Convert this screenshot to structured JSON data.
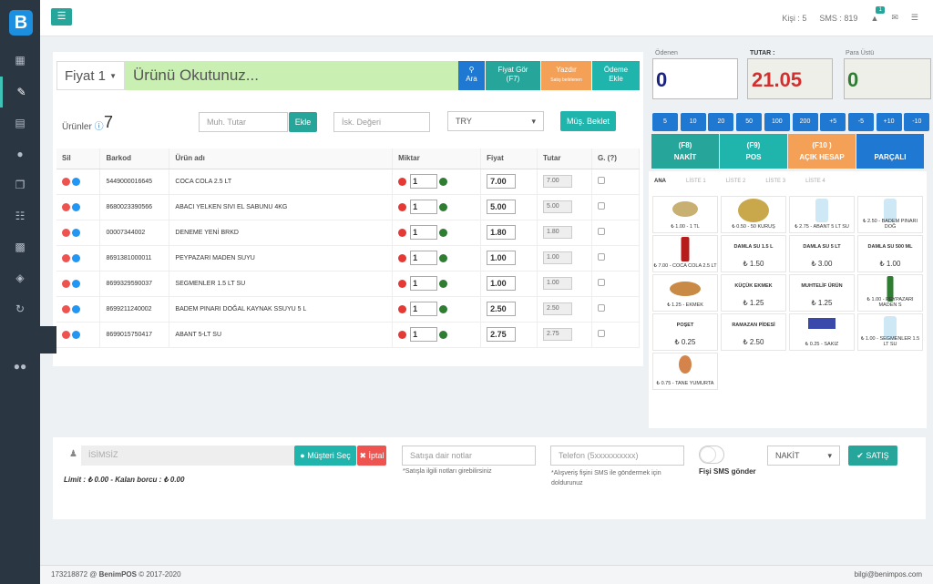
{
  "app": {
    "logo": "B",
    "footer_left_id": "173218872",
    "footer_brand": "BenimPOS",
    "footer_copy": "© 2017-2020",
    "footer_email": "bilgi@benimpos.com"
  },
  "topbar": {
    "people": "Kişi : 5",
    "sms": "SMS : 819",
    "notif_count": "1"
  },
  "scan": {
    "price_level": "Fiyat 1",
    "placeholder": "Ürünü Okutunuz...",
    "ara": "Ara",
    "fiyat_gor": "Fiyat Gör",
    "f7": "(F7)",
    "yazdir": "Yazdır",
    "yazdir_sub": "Satış belirlenen",
    "odeme": "Ödeme",
    "ekle": "Ekle"
  },
  "products": {
    "label": "Ürünler",
    "count": "7",
    "muh_tutar": "Muh. Tutar",
    "ekle": "Ekle",
    "isk": "İsk. Değeri",
    "currency": "TRY",
    "beklet": "Müş. Beklet"
  },
  "table": {
    "headers": [
      "Sil",
      "Barkod",
      "Ürün adı",
      "Miktar",
      "Fiyat",
      "Tutar",
      "G. (?)"
    ],
    "rows": [
      {
        "barkod": "5449000016645",
        "ad": "COCA COLA 2.5 LT",
        "miktar": "1",
        "fiyat": "7.00",
        "tutar": "7.00"
      },
      {
        "barkod": "8680023390566",
        "ad": "ABACI YELKEN SIVI EL SABUNU 4KG",
        "miktar": "1",
        "fiyat": "5.00",
        "tutar": "5.00"
      },
      {
        "barkod": "00007344002",
        "ad": "DENEME YENİ BRKD",
        "miktar": "1",
        "fiyat": "1.80",
        "tutar": "1.80"
      },
      {
        "barkod": "8691381000011",
        "ad": "PEYPAZARI MADEN SUYU",
        "miktar": "1",
        "fiyat": "1.00",
        "tutar": "1.00"
      },
      {
        "barkod": "8699329590037",
        "ad": "SEGMENLER 1.5 LT SU",
        "miktar": "1",
        "fiyat": "1.00",
        "tutar": "1.00"
      },
      {
        "barkod": "8699211240002",
        "ad": "BADEM PINARI DOĞAL KAYNAK SSUYU 5 L",
        "miktar": "1",
        "fiyat": "2.50",
        "tutar": "2.50"
      },
      {
        "barkod": "8699015750417",
        "ad": "ABANT 5-LT SU",
        "miktar": "1",
        "fiyat": "2.75",
        "tutar": "2.75"
      }
    ]
  },
  "totals": {
    "odenen_label": "Ödenen",
    "odenen": "0",
    "tutar_label": "TUTAR :",
    "tutar": "21.05",
    "paraustu_label": "Para Üstü",
    "paraustu": "0"
  },
  "denoms": [
    "5",
    "10",
    "20",
    "50",
    "100",
    "200",
    "+5",
    "-5",
    "+10",
    "-10"
  ],
  "pay": [
    {
      "key": "(F8)",
      "label": "NAKİT",
      "color": "#26a69a"
    },
    {
      "key": "(F9)",
      "label": "POS",
      "color": "#1fb5ad"
    },
    {
      "key": "(F10 )",
      "label": "AÇIK HESAP",
      "color": "#f4a157"
    },
    {
      "key": "",
      "label": "PARÇALI",
      "color": "#1f78d1"
    }
  ],
  "tabs": [
    "ANA",
    "LİSTE 1",
    "LİSTE 2",
    "LİSTE 3",
    "LİSTE 4"
  ],
  "tiles": [
    {
      "name": "₺ 1.00 - 1 TL",
      "type": "coin1"
    },
    {
      "name": "₺ 0.50 - 50 KURUŞ",
      "type": "coin2"
    },
    {
      "name": "₺ 2.75 - ABANT 5 LT SU",
      "type": "bottle"
    },
    {
      "name": "₺ 2.50 - BADEM PINARI DOĞ",
      "type": "bottle"
    },
    {
      "name": "₺ 7.00 - COCA COLA 2.5 LT",
      "type": "cola"
    },
    {
      "mid": "DAMLA SU 1.5 L",
      "val": "₺ 1.50"
    },
    {
      "mid": "DAMLA SU 5 LT",
      "val": "₺ 3.00"
    },
    {
      "mid": "DAMLA SU 500 ML",
      "val": "₺ 1.00"
    },
    {
      "name": "₺ 1.25 - EKMEK",
      "type": "bread"
    },
    {
      "mid": "KÜÇÜK EKMEK",
      "val": "₺ 1.25"
    },
    {
      "mid": "MUHTELİF ÜRÜN",
      "val": "₺ 1.25"
    },
    {
      "name": "₺ 1.00 - PEYPAZARI MADEN S",
      "type": "green"
    },
    {
      "mid": "POŞET",
      "val": "₺ 0.25"
    },
    {
      "mid": "RAMAZAN PİDESİ",
      "val": "₺ 2.50"
    },
    {
      "name": "₺ 0.25 - SAKIZ",
      "type": "gum"
    },
    {
      "name": "₺ 1.00 - SEGMENLER 1.5 LT SU",
      "type": "bottle"
    },
    {
      "name": "₺ 0.75 - TANE YUMURTA",
      "type": "egg"
    }
  ],
  "customer": {
    "name": "İSİMSİZ",
    "select": "Müşteri Seç",
    "iptal": "İptal",
    "limit": "Limit : ₺ 0.00 - Kalan borcu : ₺ 0.00",
    "notes_ph": "Satışa dair notlar",
    "notes_help": "*Satışla ilgili notları girebilirsiniz",
    "phone_ph": "Telefon (5xxxxxxxxxx)",
    "phone_help": "*Alışveriş fişini SMS ile göndermek için doldurunuz",
    "sms_label": "Fişi SMS gönder",
    "payment": "NAKİT",
    "satis": "SATIŞ YAP"
  }
}
